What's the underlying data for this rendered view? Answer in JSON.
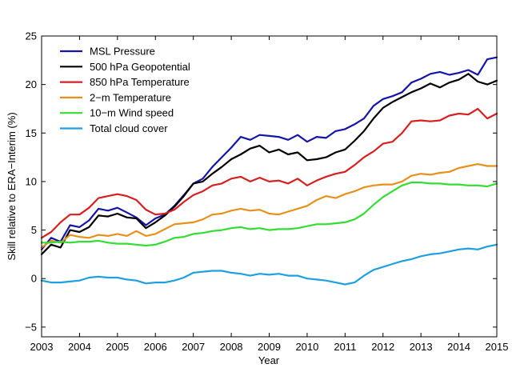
{
  "chart_data": {
    "type": "line",
    "xlabel": "Year",
    "ylabel": "Skill relative to ERA−Interim (%)",
    "xlim": [
      2003,
      2015
    ],
    "ylim": [
      -6,
      25
    ],
    "xticks": [
      2003,
      2004,
      2005,
      2006,
      2007,
      2008,
      2009,
      2010,
      2011,
      2012,
      2013,
      2014,
      2015
    ],
    "yticks": [
      -5,
      0,
      5,
      10,
      15,
      20,
      25
    ],
    "xtick_labels": [
      "2003",
      "2004",
      "2005",
      "2006",
      "2007",
      "2008",
      "2009",
      "2010",
      "2011",
      "2012",
      "2013",
      "2014",
      "2015"
    ],
    "ytick_labels": [
      "−5",
      "0",
      "5",
      "10",
      "15",
      "20",
      "25"
    ],
    "grid": false,
    "legend_position": "top-left",
    "series": [
      {
        "name": "MSL Pressure",
        "color": "#1515a8",
        "x": [
          2003.0,
          2003.25,
          2003.5,
          2003.75,
          2004.0,
          2004.25,
          2004.5,
          2004.75,
          2005.0,
          2005.25,
          2005.5,
          2005.75,
          2006.0,
          2006.25,
          2006.5,
          2006.75,
          2007.0,
          2007.25,
          2007.5,
          2007.75,
          2008.0,
          2008.25,
          2008.5,
          2008.75,
          2009.0,
          2009.25,
          2009.5,
          2009.75,
          2010.0,
          2010.25,
          2010.5,
          2010.75,
          2011.0,
          2011.25,
          2011.5,
          2011.75,
          2012.0,
          2012.25,
          2012.5,
          2012.75,
          2013.0,
          2013.25,
          2013.5,
          2013.75,
          2014.0,
          2014.25,
          2014.5,
          2014.75,
          2015.0
        ],
        "y": [
          3.0,
          4.2,
          3.8,
          5.5,
          5.3,
          6.0,
          7.2,
          7.0,
          7.3,
          6.8,
          6.3,
          5.5,
          6.2,
          6.6,
          7.5,
          8.6,
          9.8,
          10.3,
          11.5,
          12.5,
          13.5,
          14.6,
          14.3,
          14.8,
          14.7,
          14.6,
          14.3,
          14.8,
          14.1,
          14.6,
          14.5,
          15.2,
          15.4,
          15.9,
          16.5,
          17.8,
          18.5,
          18.8,
          19.2,
          20.2,
          20.6,
          21.1,
          21.3,
          21.0,
          21.2,
          21.5,
          21.0,
          22.6,
          22.8
        ]
      },
      {
        "name": "500 hPa Geopotential",
        "color": "#000000",
        "x": [
          2003.0,
          2003.25,
          2003.5,
          2003.75,
          2004.0,
          2004.25,
          2004.5,
          2004.75,
          2005.0,
          2005.25,
          2005.5,
          2005.75,
          2006.0,
          2006.25,
          2006.5,
          2006.75,
          2007.0,
          2007.25,
          2007.5,
          2007.75,
          2008.0,
          2008.25,
          2008.5,
          2008.75,
          2009.0,
          2009.25,
          2009.5,
          2009.75,
          2010.0,
          2010.25,
          2010.5,
          2010.75,
          2011.0,
          2011.25,
          2011.5,
          2011.75,
          2012.0,
          2012.25,
          2012.5,
          2012.75,
          2013.0,
          2013.25,
          2013.5,
          2013.75,
          2014.0,
          2014.25,
          2014.5,
          2014.75,
          2015.0
        ],
        "y": [
          2.5,
          3.5,
          3.2,
          5.0,
          4.8,
          5.3,
          6.5,
          6.4,
          6.7,
          6.3,
          6.2,
          5.2,
          5.8,
          6.5,
          7.4,
          8.5,
          9.8,
          10.0,
          10.8,
          11.5,
          12.3,
          12.8,
          13.4,
          13.7,
          13.0,
          13.3,
          12.8,
          13.0,
          12.2,
          12.3,
          12.5,
          13.0,
          13.3,
          14.2,
          15.2,
          16.5,
          17.6,
          18.2,
          18.7,
          19.2,
          19.6,
          20.1,
          19.7,
          20.2,
          20.5,
          21.1,
          20.3,
          20.0,
          20.4
        ]
      },
      {
        "name": "850 hPa Temperature",
        "color": "#d62020",
        "x": [
          2003.0,
          2003.25,
          2003.5,
          2003.75,
          2004.0,
          2004.25,
          2004.5,
          2004.75,
          2005.0,
          2005.25,
          2005.5,
          2005.75,
          2006.0,
          2006.25,
          2006.5,
          2006.75,
          2007.0,
          2007.25,
          2007.5,
          2007.75,
          2008.0,
          2008.25,
          2008.5,
          2008.75,
          2009.0,
          2009.25,
          2009.5,
          2009.75,
          2010.0,
          2010.25,
          2010.5,
          2010.75,
          2011.0,
          2011.25,
          2011.5,
          2011.75,
          2012.0,
          2012.25,
          2012.5,
          2012.75,
          2013.0,
          2013.25,
          2013.5,
          2013.75,
          2014.0,
          2014.25,
          2014.5,
          2014.75,
          2015.0
        ],
        "y": [
          4.2,
          4.8,
          5.8,
          6.6,
          6.6,
          7.3,
          8.3,
          8.5,
          8.7,
          8.5,
          8.1,
          7.1,
          6.6,
          6.7,
          7.1,
          7.9,
          8.6,
          9.0,
          9.6,
          9.8,
          10.3,
          10.5,
          10.0,
          10.4,
          10.0,
          10.1,
          9.8,
          10.3,
          9.6,
          10.1,
          10.5,
          10.8,
          11.0,
          11.7,
          12.5,
          13.1,
          13.9,
          14.1,
          15.0,
          16.2,
          16.3,
          16.2,
          16.3,
          16.8,
          17.0,
          16.9,
          17.5,
          16.5,
          17.0
        ]
      },
      {
        "name": "2−m Temperature",
        "color": "#e8901c",
        "x": [
          2003.0,
          2003.25,
          2003.5,
          2003.75,
          2004.0,
          2004.25,
          2004.5,
          2004.75,
          2005.0,
          2005.25,
          2005.5,
          2005.75,
          2006.0,
          2006.25,
          2006.5,
          2006.75,
          2007.0,
          2007.25,
          2007.5,
          2007.75,
          2008.0,
          2008.25,
          2008.5,
          2008.75,
          2009.0,
          2009.25,
          2009.5,
          2009.75,
          2010.0,
          2010.25,
          2010.5,
          2010.75,
          2011.0,
          2011.25,
          2011.5,
          2011.75,
          2012.0,
          2012.25,
          2012.5,
          2012.75,
          2013.0,
          2013.25,
          2013.5,
          2013.75,
          2014.0,
          2014.25,
          2014.5,
          2014.75,
          2015.0
        ],
        "y": [
          3.2,
          3.9,
          3.7,
          4.5,
          4.3,
          4.2,
          4.5,
          4.4,
          4.6,
          4.4,
          4.9,
          4.4,
          4.6,
          5.1,
          5.6,
          5.7,
          5.8,
          6.1,
          6.6,
          6.7,
          7.0,
          7.2,
          7.0,
          7.1,
          6.7,
          6.6,
          6.9,
          7.2,
          7.5,
          8.1,
          8.5,
          8.3,
          8.7,
          9.0,
          9.4,
          9.6,
          9.7,
          9.7,
          10.0,
          10.6,
          10.8,
          10.7,
          10.9,
          11.0,
          11.4,
          11.6,
          11.8,
          11.6,
          11.6
        ]
      },
      {
        "name": "10−m Wind speed",
        "color": "#33dd33",
        "x": [
          2003.0,
          2003.25,
          2003.5,
          2003.75,
          2004.0,
          2004.25,
          2004.5,
          2004.75,
          2005.0,
          2005.25,
          2005.5,
          2005.75,
          2006.0,
          2006.25,
          2006.5,
          2006.75,
          2007.0,
          2007.25,
          2007.5,
          2007.75,
          2008.0,
          2008.25,
          2008.5,
          2008.75,
          2009.0,
          2009.25,
          2009.5,
          2009.75,
          2010.0,
          2010.25,
          2010.5,
          2010.75,
          2011.0,
          2011.25,
          2011.5,
          2011.75,
          2012.0,
          2012.25,
          2012.5,
          2012.75,
          2013.0,
          2013.25,
          2013.5,
          2013.75,
          2014.0,
          2014.25,
          2014.5,
          2014.75,
          2015.0
        ],
        "y": [
          3.7,
          3.7,
          3.8,
          3.7,
          3.8,
          3.8,
          3.9,
          3.7,
          3.6,
          3.6,
          3.5,
          3.4,
          3.5,
          3.8,
          4.2,
          4.3,
          4.6,
          4.7,
          4.9,
          5.0,
          5.2,
          5.3,
          5.1,
          5.2,
          5.0,
          5.1,
          5.1,
          5.2,
          5.4,
          5.6,
          5.6,
          5.7,
          5.8,
          6.1,
          6.7,
          7.6,
          8.4,
          9.0,
          9.6,
          9.9,
          9.9,
          9.8,
          9.8,
          9.7,
          9.7,
          9.6,
          9.6,
          9.5,
          9.8
        ]
      },
      {
        "name": "Total cloud cover",
        "color": "#1ea0e0",
        "x": [
          2003.0,
          2003.25,
          2003.5,
          2003.75,
          2004.0,
          2004.25,
          2004.5,
          2004.75,
          2005.0,
          2005.25,
          2005.5,
          2005.75,
          2006.0,
          2006.25,
          2006.5,
          2006.75,
          2007.0,
          2007.25,
          2007.5,
          2007.75,
          2008.0,
          2008.25,
          2008.5,
          2008.75,
          2009.0,
          2009.25,
          2009.5,
          2009.75,
          2010.0,
          2010.25,
          2010.5,
          2010.75,
          2011.0,
          2011.25,
          2011.5,
          2011.75,
          2012.0,
          2012.25,
          2012.5,
          2012.75,
          2013.0,
          2013.25,
          2013.5,
          2013.75,
          2014.0,
          2014.25,
          2014.5,
          2014.75,
          2015.0
        ],
        "y": [
          -0.2,
          -0.4,
          -0.4,
          -0.3,
          -0.2,
          0.1,
          0.2,
          0.1,
          0.1,
          -0.1,
          -0.2,
          -0.5,
          -0.4,
          -0.4,
          -0.2,
          0.1,
          0.6,
          0.7,
          0.8,
          0.8,
          0.6,
          0.5,
          0.3,
          0.5,
          0.4,
          0.5,
          0.3,
          0.3,
          0.0,
          -0.1,
          -0.2,
          -0.4,
          -0.6,
          -0.4,
          0.3,
          0.9,
          1.2,
          1.5,
          1.8,
          2.0,
          2.3,
          2.5,
          2.6,
          2.8,
          3.0,
          3.1,
          3.0,
          3.3,
          3.5
        ]
      }
    ]
  }
}
